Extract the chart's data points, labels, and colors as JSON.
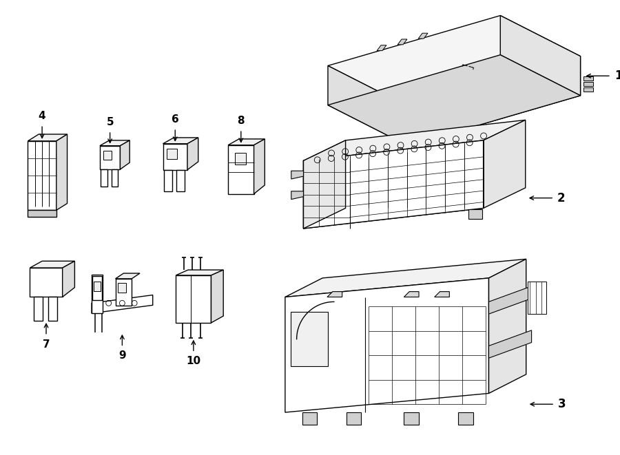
{
  "bg_color": "#ffffff",
  "lc": "#000000",
  "lw": 1.0,
  "figsize": [
    9.0,
    6.61
  ],
  "dpi": 100
}
